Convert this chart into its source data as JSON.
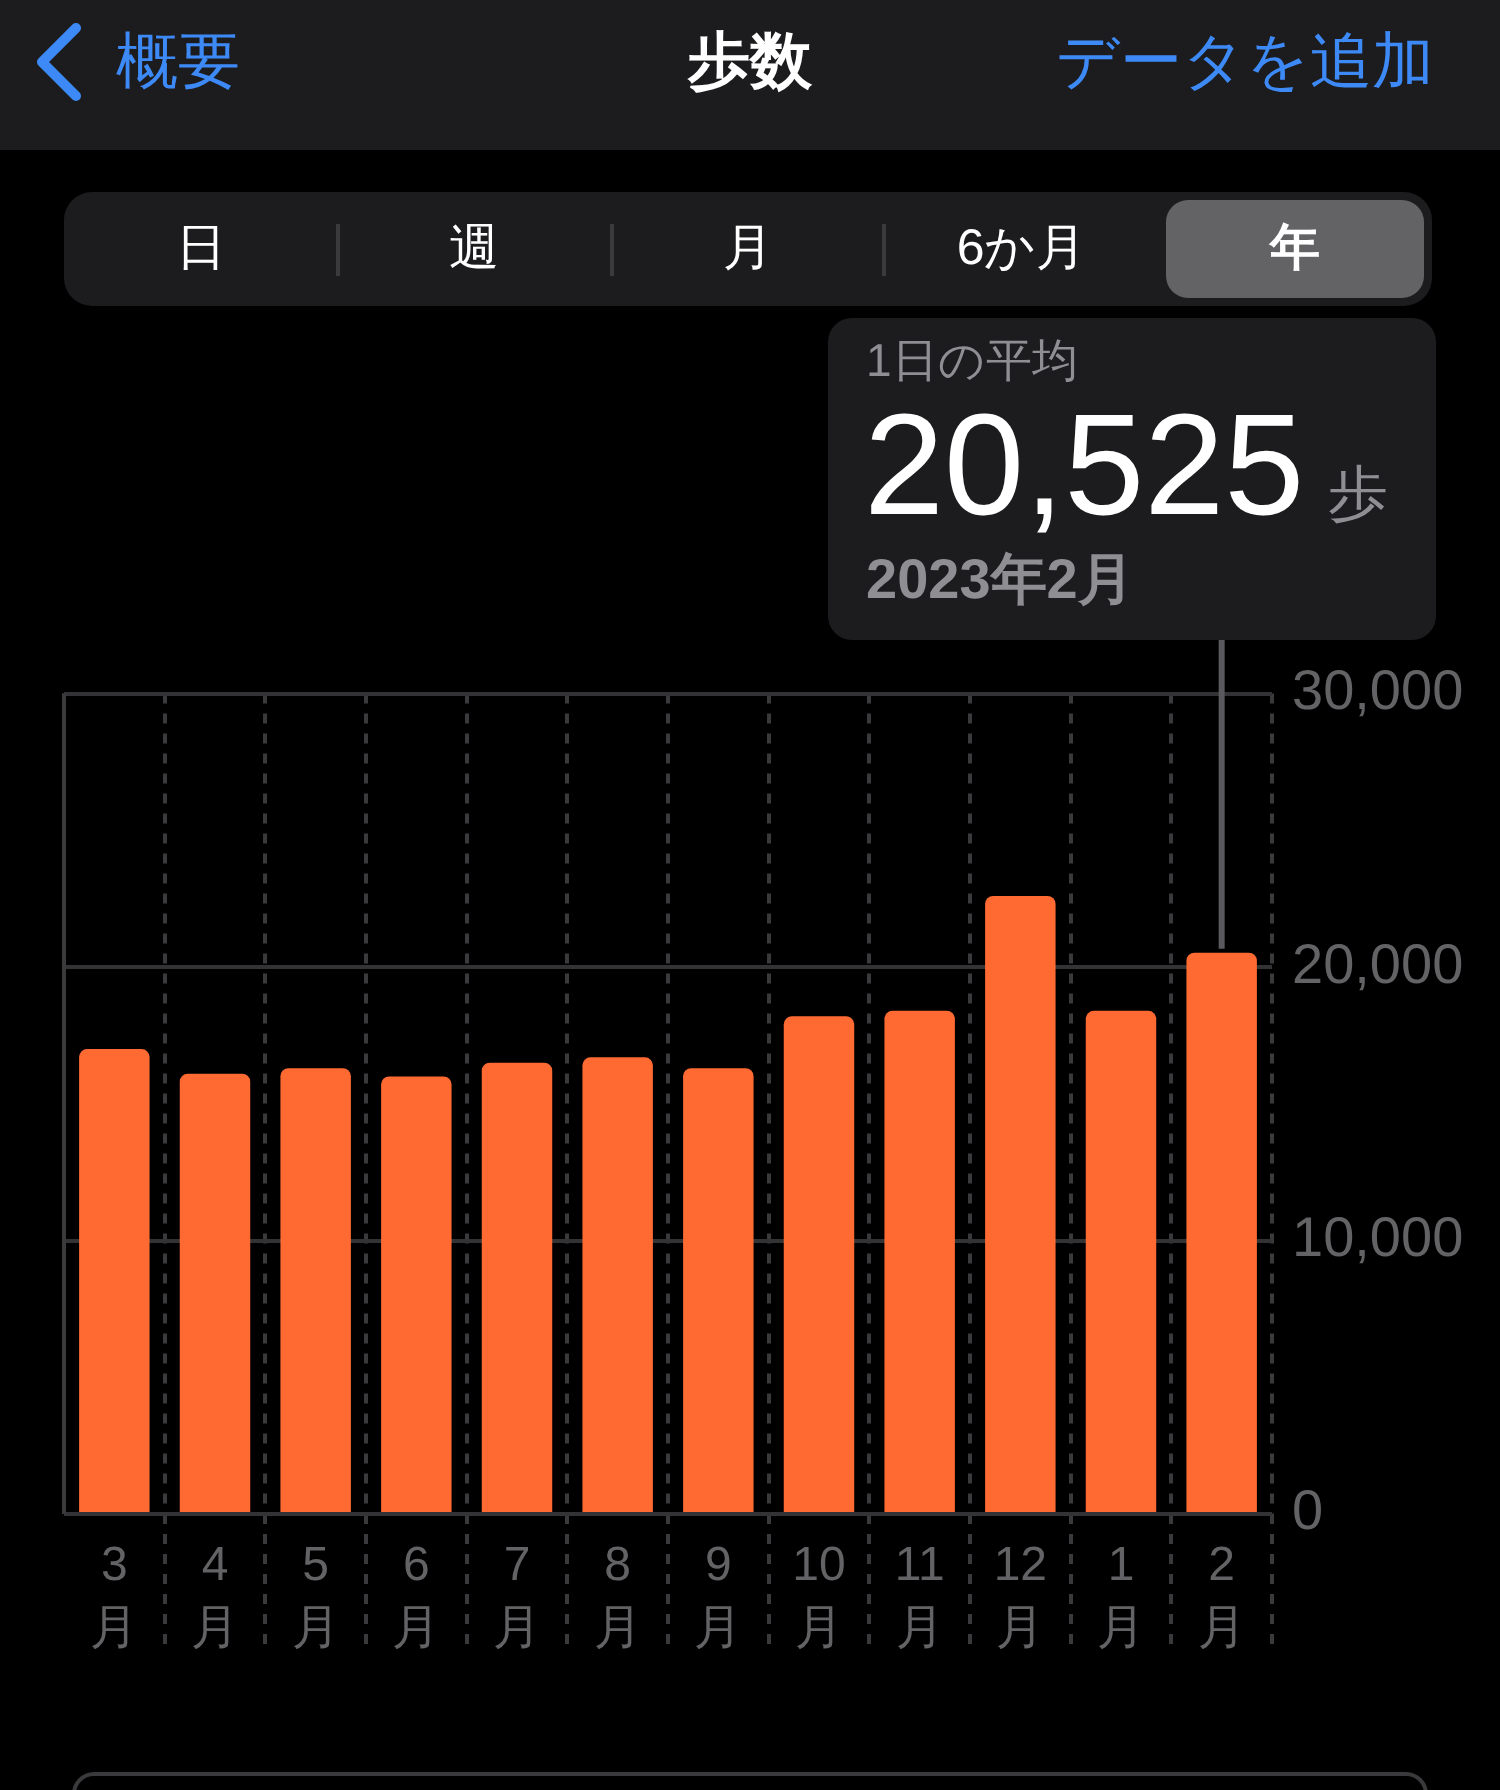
{
  "chart_data": {
    "type": "bar",
    "title": "歩数",
    "categories": [
      "3月",
      "4月",
      "5月",
      "6月",
      "7月",
      "8月",
      "9月",
      "10月",
      "11月",
      "12月",
      "1月",
      "2月"
    ],
    "values": [
      17000,
      16100,
      16300,
      16000,
      16500,
      16700,
      16300,
      18200,
      18400,
      22600,
      18400,
      20525
    ],
    "color": "#ff6a33",
    "ylim": [
      0,
      30000
    ],
    "yticks": [
      0,
      {
        "value": 10000,
        "label": "10,000"
      },
      {
        "value": 20000,
        "label": "20,000"
      },
      {
        "value": 30000,
        "label": "30,000"
      }
    ],
    "grid": true,
    "legend": false,
    "annotations": [
      "概要",
      "データを追加",
      "日",
      "週",
      "月",
      "6か月",
      "年",
      "1日の平均",
      {
        "text": "20,525",
        "x": "2月",
        "y": 20525
      },
      "歩",
      "2023年2月"
    ]
  }
}
